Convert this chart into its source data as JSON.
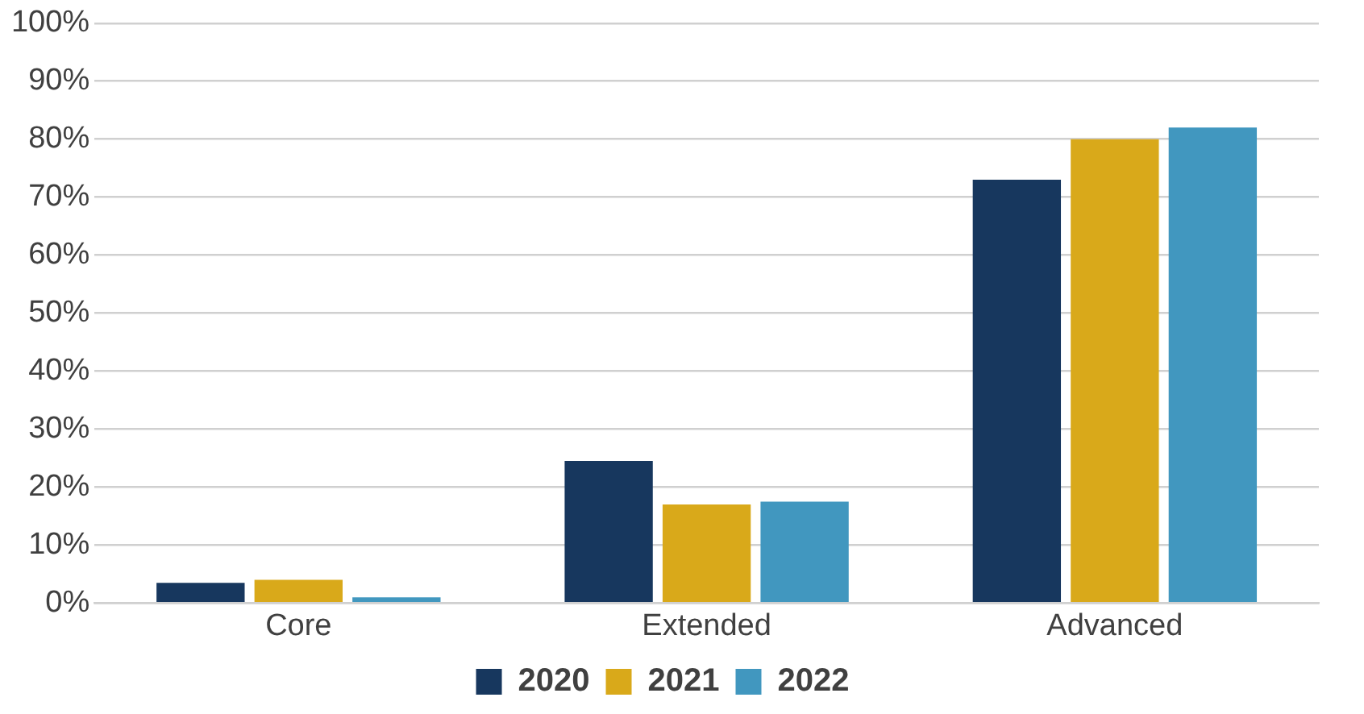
{
  "chart_data": {
    "type": "bar",
    "categories": [
      "Core",
      "Extended",
      "Advanced"
    ],
    "series": [
      {
        "name": "2020",
        "color": "#17375e",
        "values": [
          3.5,
          24.5,
          73
        ]
      },
      {
        "name": "2021",
        "color": "#d9a91a",
        "values": [
          4,
          17,
          80
        ]
      },
      {
        "name": "2022",
        "color": "#4197bf",
        "values": [
          1,
          17.5,
          82
        ]
      }
    ],
    "ylim": [
      0,
      100
    ],
    "yticks": [
      {
        "value": 0,
        "label": "0%"
      },
      {
        "value": 10,
        "label": "10%"
      },
      {
        "value": 20,
        "label": "20%"
      },
      {
        "value": 30,
        "label": "30%"
      },
      {
        "value": 40,
        "label": "40%"
      },
      {
        "value": 50,
        "label": "50%"
      },
      {
        "value": 60,
        "label": "60%"
      },
      {
        "value": 70,
        "label": "70%"
      },
      {
        "value": 80,
        "label": "80%"
      },
      {
        "value": 90,
        "label": "90%"
      },
      {
        "value": 100,
        "label": "100%"
      }
    ],
    "grid": "y",
    "legend": "bottom"
  }
}
